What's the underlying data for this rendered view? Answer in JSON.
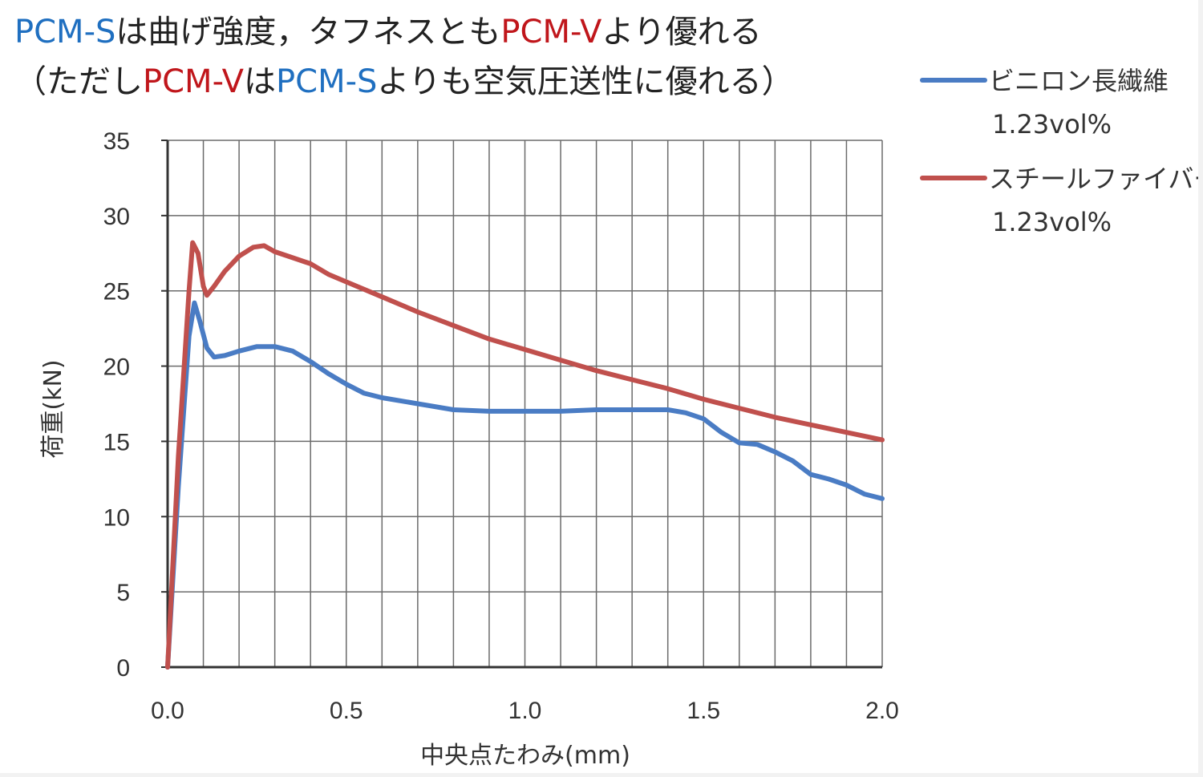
{
  "headline": {
    "line1": [
      {
        "text": "PCM-S",
        "color": "#1f6fc0"
      },
      {
        "text": "は曲げ強度，タフネスとも",
        "color": "#222222"
      },
      {
        "text": "PCM-V",
        "color": "#c0161b"
      },
      {
        "text": "より優れる",
        "color": "#222222"
      }
    ],
    "line2": [
      {
        "text": "（ただし",
        "color": "#222222"
      },
      {
        "text": "PCM-V",
        "color": "#c0161b"
      },
      {
        "text": "は",
        "color": "#222222"
      },
      {
        "text": "PCM-S",
        "color": "#1f6fc0"
      },
      {
        "text": "よりも空気圧送性に優れる）",
        "color": "#222222"
      }
    ]
  },
  "chart_data": {
    "type": "line",
    "xlabel": "中央点たわみ(mm)",
    "ylabel": "荷重(kN)",
    "xlim": [
      0,
      2.0
    ],
    "ylim": [
      0,
      35
    ],
    "xticks": [
      "0.0",
      "0.5",
      "1.0",
      "1.5",
      "2.0"
    ],
    "yticks": [
      "0",
      "5",
      "10",
      "15",
      "20",
      "25",
      "30",
      "35"
    ],
    "grid": true,
    "legend_position": "right",
    "series": [
      {
        "name": "ビニロン長繊維",
        "name_line2": "1.23vol%",
        "color": "#4a7cc4",
        "points": [
          [
            0,
            0
          ],
          [
            0.03,
            12
          ],
          [
            0.06,
            22
          ],
          [
            0.075,
            24.2
          ],
          [
            0.09,
            23
          ],
          [
            0.11,
            21.2
          ],
          [
            0.13,
            20.6
          ],
          [
            0.16,
            20.7
          ],
          [
            0.2,
            21.0
          ],
          [
            0.25,
            21.3
          ],
          [
            0.3,
            21.3
          ],
          [
            0.35,
            21.0
          ],
          [
            0.4,
            20.3
          ],
          [
            0.45,
            19.5
          ],
          [
            0.5,
            18.8
          ],
          [
            0.55,
            18.2
          ],
          [
            0.6,
            17.9
          ],
          [
            0.7,
            17.5
          ],
          [
            0.8,
            17.1
          ],
          [
            0.9,
            17.0
          ],
          [
            1.0,
            17.0
          ],
          [
            1.1,
            17.0
          ],
          [
            1.2,
            17.1
          ],
          [
            1.3,
            17.1
          ],
          [
            1.4,
            17.1
          ],
          [
            1.45,
            16.9
          ],
          [
            1.5,
            16.5
          ],
          [
            1.55,
            15.6
          ],
          [
            1.6,
            14.9
          ],
          [
            1.65,
            14.8
          ],
          [
            1.7,
            14.3
          ],
          [
            1.75,
            13.7
          ],
          [
            1.8,
            12.8
          ],
          [
            1.85,
            12.5
          ],
          [
            1.9,
            12.1
          ],
          [
            1.95,
            11.5
          ],
          [
            2.0,
            11.2
          ]
        ]
      },
      {
        "name": "スチールファイバー",
        "name_line2": "1.23vol%",
        "color": "#c0504d",
        "points": [
          [
            0,
            0
          ],
          [
            0.03,
            14
          ],
          [
            0.06,
            25
          ],
          [
            0.07,
            28.2
          ],
          [
            0.085,
            27.5
          ],
          [
            0.1,
            25.3
          ],
          [
            0.11,
            24.7
          ],
          [
            0.13,
            25.3
          ],
          [
            0.16,
            26.3
          ],
          [
            0.2,
            27.3
          ],
          [
            0.24,
            27.9
          ],
          [
            0.27,
            28.0
          ],
          [
            0.3,
            27.6
          ],
          [
            0.35,
            27.2
          ],
          [
            0.4,
            26.8
          ],
          [
            0.45,
            26.1
          ],
          [
            0.5,
            25.6
          ],
          [
            0.6,
            24.6
          ],
          [
            0.7,
            23.6
          ],
          [
            0.8,
            22.7
          ],
          [
            0.9,
            21.8
          ],
          [
            1.0,
            21.1
          ],
          [
            1.1,
            20.4
          ],
          [
            1.2,
            19.7
          ],
          [
            1.3,
            19.1
          ],
          [
            1.4,
            18.5
          ],
          [
            1.5,
            17.8
          ],
          [
            1.6,
            17.2
          ],
          [
            1.7,
            16.6
          ],
          [
            1.8,
            16.1
          ],
          [
            1.9,
            15.6
          ],
          [
            2.0,
            15.1
          ]
        ]
      }
    ]
  }
}
